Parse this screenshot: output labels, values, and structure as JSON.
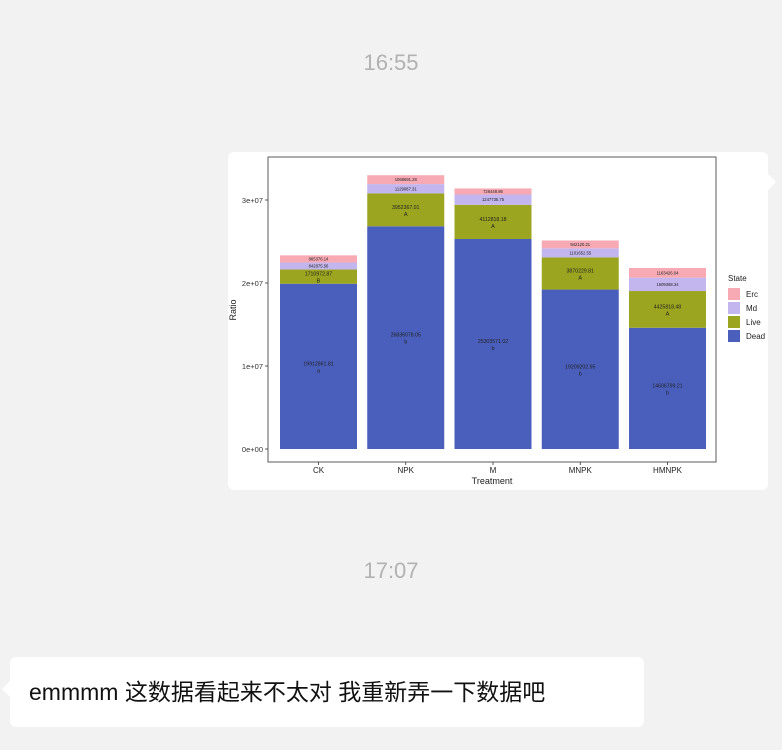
{
  "messages": {
    "time1": "16:55",
    "time2": "17:07",
    "reply_text": "emmmm 这数据看起来不太对 我重新弄一下数据吧"
  },
  "chart_data": {
    "type": "bar",
    "stacked": true,
    "xlabel": "Treatment",
    "ylabel": "Ratio",
    "ylim": [
      0,
      35000000
    ],
    "yticks": [
      "0e+00",
      "1e+07",
      "2e+07",
      "3e+07"
    ],
    "ytick_values": [
      0,
      10000000,
      20000000,
      30000000
    ],
    "categories": [
      "CK",
      "NPK",
      "M",
      "MNPK",
      "HMNPK"
    ],
    "legend_title": "State",
    "legend_position": "right",
    "grid": false,
    "series": [
      {
        "name": "Dead",
        "color": "#4a5fbc",
        "values": [
          19912861.81,
          26836078.05,
          25303571.02,
          19209202.95,
          14606799.21
        ],
        "labels": [
          "19912861.81",
          "26836078.05",
          "25303571.02",
          "19209202.95",
          "14606799.21"
        ],
        "letters": [
          "a",
          "b",
          "b",
          "b",
          "b"
        ]
      },
      {
        "name": "Live",
        "color": "#9ba51f",
        "values": [
          1710972.87,
          3952367.01,
          4112818.18,
          3870229.81,
          4425818.48
        ],
        "labels": [
          "1710972.87",
          "3952367.01",
          "4112818.18",
          "3870229.81",
          "4425818.48"
        ],
        "letters": [
          "B",
          "A",
          "A",
          "A",
          "A"
        ]
      },
      {
        "name": "Md",
        "color": "#c3b6ee",
        "values": [
          842875.56,
          1129087.31,
          1247735.75,
          1101652.55,
          1609368.34
        ],
        "labels": [
          "842875.56",
          "1129087.31",
          "1247735.75",
          "1101652.55",
          "1609368.34"
        ]
      },
      {
        "name": "Erc",
        "color": "#f7aab4",
        "values": [
          865376.14,
          1068691.28,
          726448.86,
          942120.21,
          1163426.04
        ],
        "labels": [
          "865376.14",
          "1068691.28",
          "726448.86",
          "942120.21",
          "1163426.04"
        ]
      }
    ],
    "legend_order": [
      "Erc",
      "Md",
      "Live",
      "Dead"
    ]
  }
}
